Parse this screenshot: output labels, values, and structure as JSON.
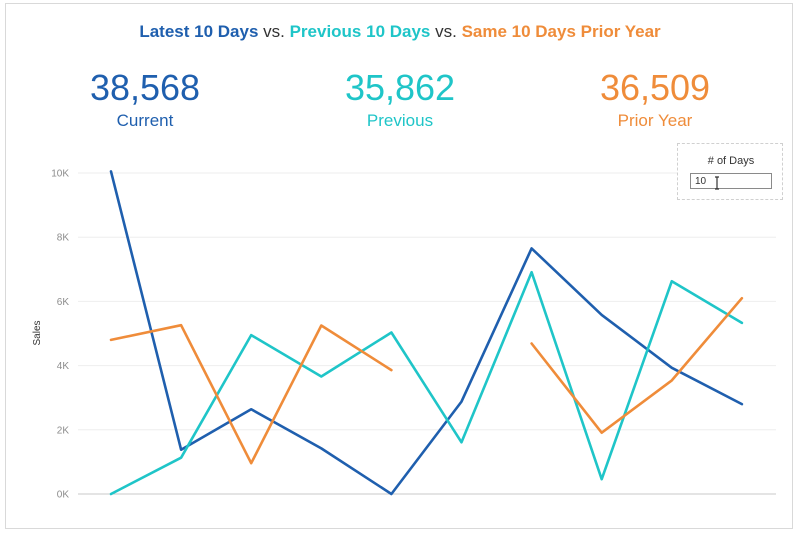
{
  "header": {
    "title_part1": "Latest 10 Days",
    "title_vs1": " vs. ",
    "title_part2": "Previous 10 Days",
    "title_vs2": " vs. ",
    "title_part3": "Same 10 Days Prior Year"
  },
  "kpis": {
    "current": {
      "value": "38,568",
      "label": "Current"
    },
    "previous": {
      "value": "35,862",
      "label": "Previous"
    },
    "prior_year": {
      "value": "36,509",
      "label": "Prior Year"
    }
  },
  "parameter": {
    "label": "# of Days",
    "value": "10"
  },
  "colors": {
    "current": "#1f5fae",
    "previous": "#1fc5c8",
    "prior_year": "#ef8c3a"
  },
  "chart_data": {
    "type": "line",
    "ylabel": "Sales",
    "ylim": [
      0,
      10000
    ],
    "yticks": [
      0,
      2000,
      4000,
      6000,
      8000,
      10000
    ],
    "yticklabels": [
      "0K",
      "2K",
      "4K",
      "6K",
      "8K",
      "10K"
    ],
    "x": [
      1,
      2,
      3,
      4,
      5,
      6,
      7,
      8,
      9,
      10
    ],
    "grid": true,
    "series": [
      {
        "key": "current",
        "values": [
          10050,
          1380,
          2640,
          1420,
          0,
          2880,
          7650,
          5580,
          3930,
          2800
        ]
      },
      {
        "key": "previous",
        "values": [
          0,
          1130,
          4950,
          3660,
          5030,
          1610,
          6910,
          460,
          6630,
          5330
        ]
      },
      {
        "key": "prior_year",
        "values": [
          4800,
          5260,
          960,
          5250,
          3860,
          null,
          4690,
          1910,
          3540,
          6100
        ]
      }
    ]
  }
}
